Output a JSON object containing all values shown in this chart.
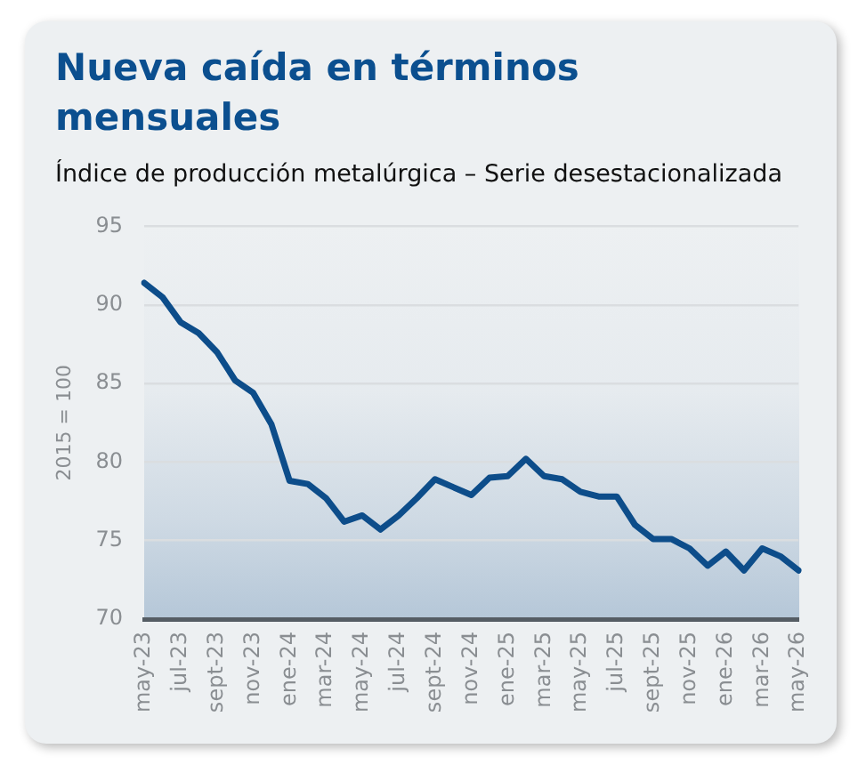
{
  "chart_data": {
    "type": "line",
    "title": "Nueva caída en términos mensuales",
    "subtitle": "Índice de producción metalúrgica – Serie desestacionalizada",
    "ylabel": "2015 = 100",
    "categories": [
      "may-23",
      null,
      "jul-23",
      null,
      "sept-23",
      null,
      "nov-23",
      null,
      "ene-24",
      null,
      "mar-24",
      null,
      "may-24",
      null,
      "jul-24",
      null,
      "sept-24",
      null,
      "nov-24",
      null,
      "ene-25",
      null,
      "mar-25",
      null,
      "may-25",
      null,
      "jul-25",
      null,
      "sept-25",
      null,
      "nov-25",
      null,
      "ene-26",
      null,
      "mar-26",
      null,
      "may-26"
    ],
    "series": [
      {
        "color": "#0d4d8a",
        "values": [
          91.4,
          90.5,
          88.9,
          88.2,
          87.0,
          85.2,
          84.4,
          82.4,
          78.8,
          78.6,
          77.7,
          76.2,
          76.6,
          75.7,
          76.6,
          77.7,
          78.9,
          78.4,
          77.9,
          79.0,
          79.1,
          80.2,
          79.1,
          78.9,
          78.1,
          77.8,
          77.8,
          76.0,
          75.1,
          75.1,
          74.5,
          73.4,
          74.3,
          73.1,
          74.5,
          74.0,
          73.1
        ]
      }
    ],
    "ylim": [
      70,
      95
    ],
    "yticks": [
      70,
      75,
      80,
      85,
      90,
      95
    ],
    "grid": "y",
    "marker": "none"
  }
}
